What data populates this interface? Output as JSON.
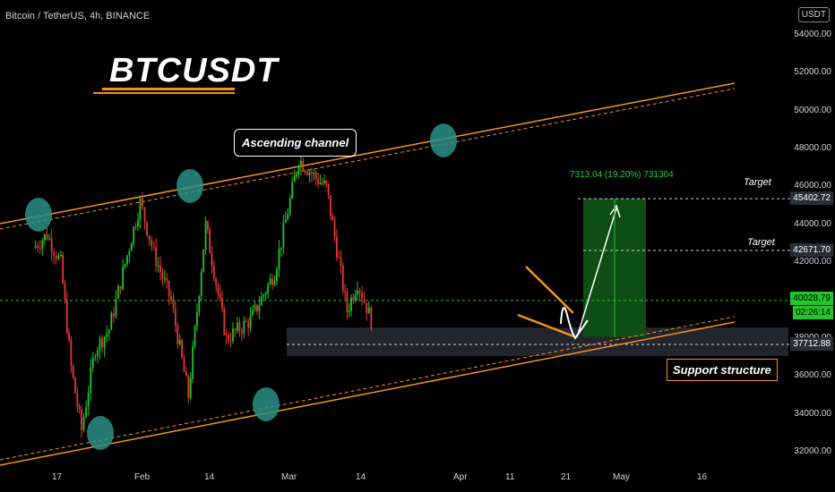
{
  "header": {
    "symbol": "Bitcoin / TetherUS, 4h, BINANCE"
  },
  "annotations": {
    "title": "BTCUSDT",
    "channel_label": "Ascending channel",
    "support_label": "Support structure",
    "target1_label": "Target",
    "target2_label": "Target",
    "measure_label": "7313.04 (19.20%) 731304"
  },
  "y_axis": {
    "unit": "USDT",
    "ticks": [
      "54000.00",
      "52000.00",
      "50000.00",
      "48000.00",
      "46000.00",
      "44000.00",
      "42000.00",
      "40000.00",
      "38000.00",
      "36000.00",
      "34000.00",
      "32000.00"
    ],
    "badges": {
      "target1": "45402.72",
      "target2": "42671.70",
      "current": "40028.79",
      "countdown": "02:26:14",
      "support": "37712.88"
    }
  },
  "x_axis": {
    "ticks": [
      "17",
      "Feb",
      "14",
      "Mar",
      "14",
      "Apr",
      "11",
      "21",
      "May",
      "16"
    ]
  },
  "colors": {
    "bull": "#26a69a",
    "bear": "#ef5350",
    "green_candle": "#22c52a",
    "red_candle": "#e53935",
    "channel": "#f7931a",
    "target_zone": "#0e4d14",
    "circle": "#2a8f86"
  },
  "chart_data": {
    "type": "candlestick",
    "title": "",
    "ylim": [
      31500,
      55000
    ],
    "ylabel": "USDT",
    "x": [
      "17",
      "Feb",
      "14",
      "Mar",
      "14",
      "Apr",
      "11",
      "21",
      "May",
      "16"
    ],
    "key_levels": {
      "target_1": 45402.72,
      "target_2": 42671.7,
      "current": 40028.79,
      "support": 37712.88
    },
    "swing_path": [
      {
        "x": "Jan 10",
        "y": 42800
      },
      {
        "x": "Jan 14",
        "y": 43500
      },
      {
        "x": "Jan 18",
        "y": 42000
      },
      {
        "x": "Jan 21",
        "y": 36500
      },
      {
        "x": "Jan 24",
        "y": 33200
      },
      {
        "x": "Jan 28",
        "y": 37500
      },
      {
        "x": "Feb 1",
        "y": 38500
      },
      {
        "x": "Feb 5",
        "y": 41500
      },
      {
        "x": "Feb 10",
        "y": 45200
      },
      {
        "x": "Feb 14",
        "y": 42500
      },
      {
        "x": "Feb 19",
        "y": 40000
      },
      {
        "x": "Feb 24",
        "y": 35000
      },
      {
        "x": "Mar 1",
        "y": 44000
      },
      {
        "x": "Mar 7",
        "y": 38000
      },
      {
        "x": "Mar 14",
        "y": 39000
      },
      {
        "x": "Mar 21",
        "y": 41500
      },
      {
        "x": "Mar 28",
        "y": 47500
      },
      {
        "x": "Apr 2",
        "y": 46500
      },
      {
        "x": "Apr 5",
        "y": 46000
      },
      {
        "x": "Apr 11",
        "y": 39500
      },
      {
        "x": "Apr 14",
        "y": 41000
      },
      {
        "x": "Apr 18",
        "y": 39000
      }
    ]
  }
}
